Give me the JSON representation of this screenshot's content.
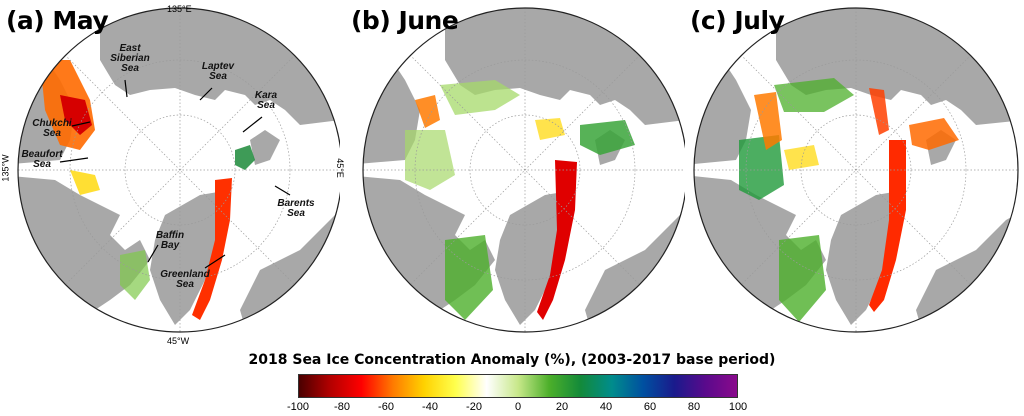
{
  "panels": [
    {
      "id": "may",
      "title": "(a) May"
    },
    {
      "id": "june",
      "title": "(b) June"
    },
    {
      "id": "july",
      "title": "(c) July"
    }
  ],
  "longitude_labels": {
    "top": "135°E",
    "left": "135°W",
    "right": "45°E",
    "bottom": "45°W"
  },
  "sea_labels": {
    "east_siberian": "East\nSiberian\nSea",
    "laptev": "Laptev\nSea",
    "kara": "Kara\nSea",
    "chukchi": "Chukchi\nSea",
    "beaufort": "Beaufort\nSea",
    "barents": "Barents\nSea",
    "baffin": "Baffin\nBay",
    "greenland": "Greenland\nSea"
  },
  "legend": {
    "title": "2018 Sea Ice Concentration Anomaly (%), (2003-2017 base period)",
    "ticks": [
      "-100",
      "-80",
      "-60",
      "-40",
      "-20",
      "0",
      "20",
      "40",
      "60",
      "80",
      "100"
    ],
    "min": -100,
    "max": 100,
    "colors": [
      "#4a0000",
      "#b30000",
      "#ff0000",
      "#ff7a00",
      "#ffd200",
      "#ffff4d",
      "#ffffff",
      "#c8e88a",
      "#4caf2a",
      "#138a3a",
      "#008c8c",
      "#0050a0",
      "#1a1a8c",
      "#5a0a8c",
      "#8a0a8c"
    ]
  },
  "colors": {
    "land": "#a8a8a8",
    "ocean_ice": "#ffffff",
    "outline": "#222222",
    "grid": "#9a9a9a"
  }
}
